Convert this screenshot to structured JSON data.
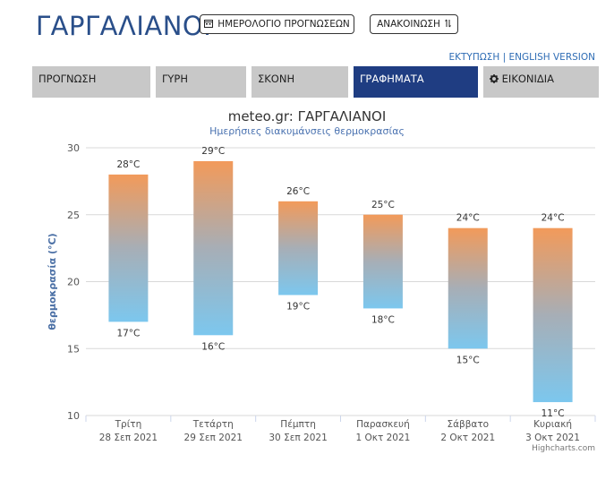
{
  "header": {
    "title": "ΓΑΡΓΑΛΙΑΝΟΙ",
    "calendar_button": "ΗΜΕΡΟΛΟΓΙΟ ΠΡΟΓΝΩΣΕΩΝ",
    "announcement_button": "ΑΝΑΚΟΙΝΩΣΗ",
    "print_link": "ΕΚΤΥΠΩΣΗ",
    "separator": "|",
    "english_link": "ENGLISH VERSION"
  },
  "tabs": [
    {
      "label": "ΠΡΟΓΝΩΣΗ",
      "active": false
    },
    {
      "label": "ΓΥΡΗ",
      "active": false
    },
    {
      "label": "ΣΚΟΝΗ",
      "active": false
    },
    {
      "label": "ΓΡΑΦΗΜΑΤΑ",
      "active": true
    },
    {
      "label": "ΕΙΚΟΝΙΔΙΑ",
      "active": false,
      "icon": "gear-icon"
    }
  ],
  "credit": "Highcharts.com",
  "chart_data": {
    "type": "columnrange",
    "title": "meteo.gr: ΓΑΡΓΑΛΙΑΝΟΙ",
    "subtitle": "Ημερήσιες διακυμάνσεις θερμοκρασίας",
    "ylabel": "θερμοκρασία (°C)",
    "ylim": [
      10,
      30
    ],
    "yticks": [
      10,
      15,
      20,
      25,
      30
    ],
    "grid": true,
    "unit": "°C",
    "colors": {
      "high": "#f29a5a",
      "low": "#7cc7ee"
    },
    "categories": [
      {
        "day": "Τρίτη",
        "date": "28 Σεπ 2021"
      },
      {
        "day": "Τετάρτη",
        "date": "29 Σεπ 2021"
      },
      {
        "day": "Πέμπτη",
        "date": "30 Σεπ 2021"
      },
      {
        "day": "Παρασκευή",
        "date": "1 Οκτ 2021"
      },
      {
        "day": "Σάββατο",
        "date": "2 Οκτ 2021"
      },
      {
        "day": "Κυριακή",
        "date": "3 Οκτ 2021"
      }
    ],
    "low": [
      17,
      16,
      19,
      18,
      15,
      11
    ],
    "high": [
      28,
      29,
      26,
      25,
      24,
      24
    ]
  }
}
